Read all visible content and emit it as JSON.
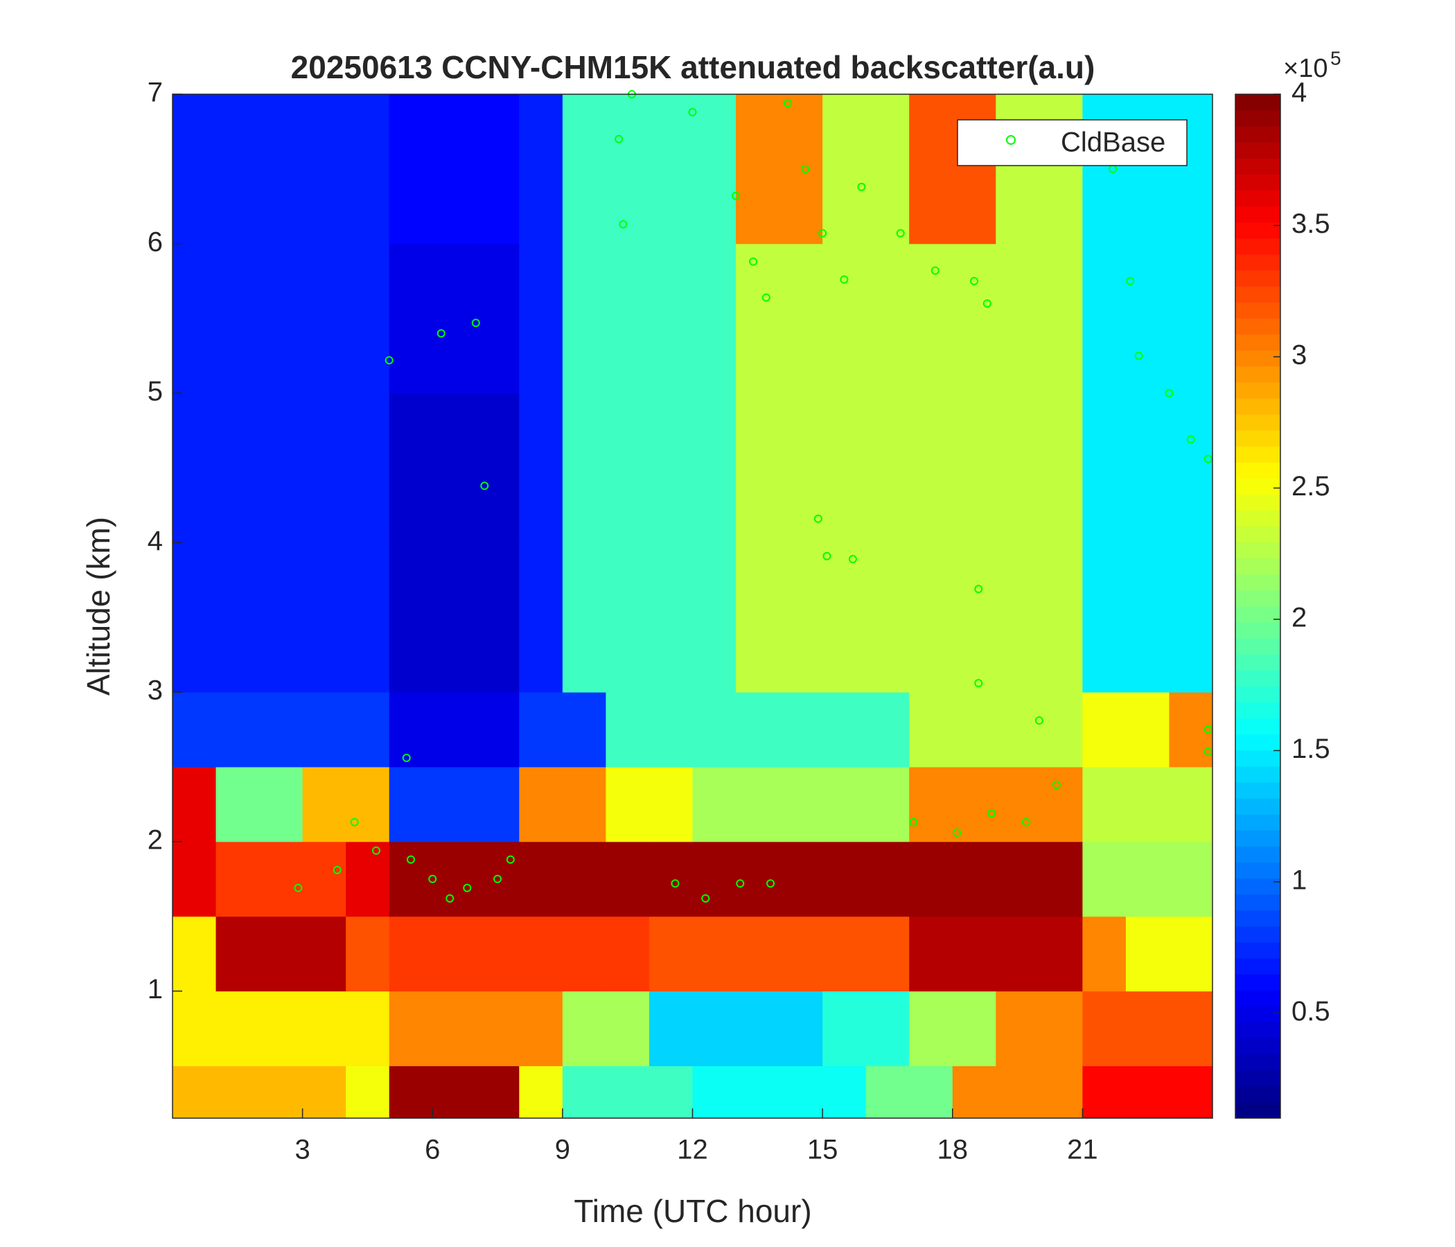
{
  "chart_data": {
    "type": "heatmap",
    "title": "20250613 CCNY-CHM15K attenuated backscatter(a.u)",
    "x_label": "Time (UTC hour)",
    "y_label": "Altitude (km)",
    "xlim": [
      0,
      24
    ],
    "xticks": [
      3,
      6,
      9,
      12,
      15,
      18,
      21
    ],
    "ylim": [
      0.15,
      7
    ],
    "yticks": [
      1,
      2,
      3,
      4,
      5,
      6,
      7
    ],
    "colormap": "jet",
    "clim": [
      0.1,
      4
    ],
    "cticks": [
      0.5,
      1,
      1.5,
      2,
      2.5,
      3,
      3.5,
      4
    ],
    "colorbar_scale_base": "×10",
    "colorbar_scale_exponent": "5",
    "x_bins": [
      0,
      1,
      2,
      3,
      4,
      5,
      6,
      7,
      8,
      9,
      10,
      11,
      12,
      13,
      14,
      15,
      16,
      17,
      18,
      19,
      20,
      21,
      22,
      23,
      24
    ],
    "y_bins": [
      0.15,
      0.5,
      1,
      1.5,
      2,
      2.5,
      3,
      4,
      5,
      6,
      7
    ],
    "z": [
      [
        2.8,
        2.8,
        2.8,
        2.8,
        2.5,
        3.9,
        3.9,
        3.9,
        2.5,
        1.8,
        1.8,
        1.8,
        1.6,
        1.6,
        1.6,
        1.6,
        2,
        2,
        3,
        3,
        3,
        3.5,
        3.5,
        3.5
      ],
      [
        2.6,
        2.6,
        2.6,
        2.6,
        2.6,
        3,
        3,
        3,
        3,
        2.2,
        2.2,
        1.4,
        1.4,
        1.4,
        1.4,
        1.7,
        1.7,
        2.2,
        2.2,
        3,
        3,
        3.2,
        3.2,
        3.2
      ],
      [
        2.6,
        3.8,
        3.8,
        3.8,
        3.2,
        3.3,
        3.3,
        3.3,
        3.3,
        3.3,
        3.3,
        3.2,
        3.2,
        3.2,
        3.2,
        3.2,
        3.2,
        3.8,
        3.8,
        3.8,
        3.8,
        3,
        2.5,
        2.5
      ],
      [
        3.6,
        3.3,
        3.3,
        3.3,
        3.6,
        3.9,
        3.9,
        3.9,
        3.9,
        3.9,
        3.9,
        3.9,
        3.9,
        3.9,
        3.9,
        3.9,
        3.9,
        3.9,
        3.9,
        3.9,
        3.9,
        2.2,
        2.2,
        2.2
      ],
      [
        3.6,
        2,
        2,
        2.8,
        2.8,
        0.8,
        0.8,
        0.8,
        3,
        3,
        2.5,
        2.5,
        2.2,
        2.2,
        2.2,
        2.2,
        2.2,
        3,
        3,
        3,
        3,
        2.3,
        2.3,
        2.3
      ],
      [
        0.8,
        0.8,
        0.8,
        0.8,
        0.8,
        0.5,
        0.5,
        0.5,
        0.8,
        0.8,
        1.8,
        1.8,
        1.8,
        1.8,
        1.8,
        1.8,
        1.8,
        2.3,
        2.3,
        2.3,
        2.3,
        2.5,
        2.5,
        3
      ],
      [
        0.7,
        0.7,
        0.7,
        0.7,
        0.7,
        0.4,
        0.4,
        0.4,
        0.7,
        1.8,
        1.8,
        1.8,
        1.8,
        2.3,
        2.3,
        2.3,
        2.3,
        2.3,
        2.3,
        2.3,
        2.3,
        1.5,
        1.5,
        1.5
      ],
      [
        0.7,
        0.7,
        0.7,
        0.7,
        0.7,
        0.4,
        0.4,
        0.4,
        0.7,
        1.8,
        1.8,
        1.8,
        1.8,
        2.3,
        2.3,
        2.3,
        2.3,
        2.3,
        2.3,
        2.3,
        2.3,
        1.5,
        1.5,
        1.5
      ],
      [
        0.7,
        0.7,
        0.7,
        0.7,
        0.7,
        0.5,
        0.5,
        0.5,
        0.7,
        1.8,
        1.8,
        1.8,
        1.8,
        2.3,
        2.3,
        2.3,
        2.3,
        2.3,
        2.3,
        2.3,
        2.3,
        1.5,
        1.5,
        1.5
      ],
      [
        0.7,
        0.7,
        0.7,
        0.7,
        0.7,
        0.6,
        0.6,
        0.6,
        0.7,
        1.8,
        1.8,
        1.8,
        1.8,
        3,
        3,
        2.3,
        2.3,
        3.2,
        3.2,
        2.3,
        2.3,
        1.5,
        1.5,
        1.5
      ]
    ],
    "series": [
      {
        "name": "CldBase",
        "type": "scatter",
        "color": "#00ff00",
        "x": [
          5.0,
          6.2,
          7.0,
          7.2,
          4.2,
          4.7,
          5.4,
          5.5,
          6.0,
          6.4,
          6.8,
          7.5,
          7.8,
          2.9,
          3.8,
          10.3,
          10.4,
          10.6,
          11.6,
          12.3,
          13.1,
          13.8,
          12.0,
          13.0,
          13.4,
          13.7,
          14.2,
          14.6,
          15.0,
          15.5,
          14.9,
          15.1,
          15.7,
          15.9,
          16.8,
          17.6,
          18.5,
          18.8,
          17.1,
          18.1,
          18.9,
          19.7,
          20.4,
          18.6,
          18.6,
          20.0,
          21.7,
          22.1,
          22.3,
          23.0,
          23.5,
          23.9,
          23.9,
          23.9
        ],
        "y": [
          5.22,
          5.4,
          5.47,
          4.38,
          2.13,
          1.94,
          2.56,
          1.88,
          1.75,
          1.62,
          1.69,
          1.75,
          1.88,
          1.69,
          1.81,
          6.7,
          6.13,
          7.0,
          1.72,
          1.62,
          1.72,
          1.72,
          6.88,
          6.32,
          5.88,
          5.64,
          6.94,
          6.5,
          6.07,
          5.76,
          4.16,
          3.91,
          3.89,
          6.38,
          6.07,
          5.82,
          5.75,
          5.6,
          2.13,
          2.06,
          2.19,
          2.13,
          2.38,
          3.69,
          3.06,
          2.81,
          6.5,
          5.75,
          5.25,
          5.0,
          4.69,
          4.56,
          2.75,
          2.6
        ]
      }
    ],
    "legend": "upper right"
  }
}
